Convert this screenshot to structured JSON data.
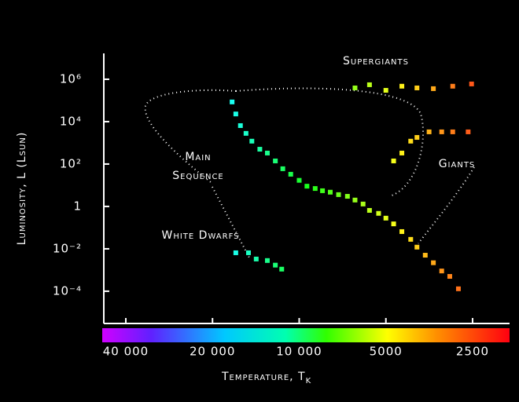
{
  "chart_data": {
    "type": "scatter",
    "x_label": "Temperature, T",
    "x_label_sub": "K",
    "y_label": "Luminosity, L (Lsun)",
    "log_x": true,
    "log_y": true,
    "xlim": [
      48300,
      1860
    ],
    "ylim": [
      3e-06,
      14000000
    ],
    "xticks": [
      {
        "value": 40000,
        "label": "40 000"
      },
      {
        "value": 20000,
        "label": "20 000"
      },
      {
        "value": 10000,
        "label": "10 000"
      },
      5000,
      2500
    ],
    "yticks": [
      {
        "value": 1000000,
        "label": "10⁶"
      },
      {
        "value": 10000,
        "label": "10⁴"
      },
      {
        "value": 100,
        "label": "10²"
      },
      1,
      {
        "value": 0.01,
        "label": "10⁻²"
      },
      {
        "value": 0.0001,
        "label": "10⁻⁴"
      }
    ],
    "annotations": [
      "Supergiants",
      "Main",
      "Sequence",
      "White Dwarfs",
      "Giants"
    ],
    "x": [
      17100,
      16600,
      16000,
      15300,
      14600,
      13700,
      12900,
      12100,
      11400,
      10700,
      10000,
      9400,
      8800,
      8300,
      7800,
      7300,
      6800,
      6400,
      6000,
      5700,
      5300,
      5000,
      4700,
      4400,
      4100,
      3900,
      3650,
      3420,
      3200,
      3000,
      2800,
      16600,
      15000,
      14100,
      12900,
      12100,
      11500,
      4700,
      4400,
      4100,
      3900,
      3540,
      3200,
      2930,
      2590,
      6400,
      5700,
      5000,
      4400,
      3900,
      3420,
      2930,
      2520
    ],
    "values": [
      85000,
      23000,
      6500,
      2800,
      1200,
      500,
      330,
      140,
      60,
      33,
      17,
      9,
      7,
      5.5,
      4.7,
      3.6,
      3,
      2,
      1.3,
      0.65,
      0.47,
      0.28,
      0.15,
      0.065,
      0.028,
      0.012,
      0.005,
      0.0022,
      0.0009,
      0.0005,
      0.00013,
      0.0065,
      0.0065,
      0.0033,
      0.0028,
      0.0017,
      0.0011,
      140,
      330,
      1200,
      1800,
      3300,
      3300,
      3300,
      3300,
      390000,
      550000,
      300000,
      470000,
      390000,
      360000,
      470000,
      600000
    ]
  }
}
